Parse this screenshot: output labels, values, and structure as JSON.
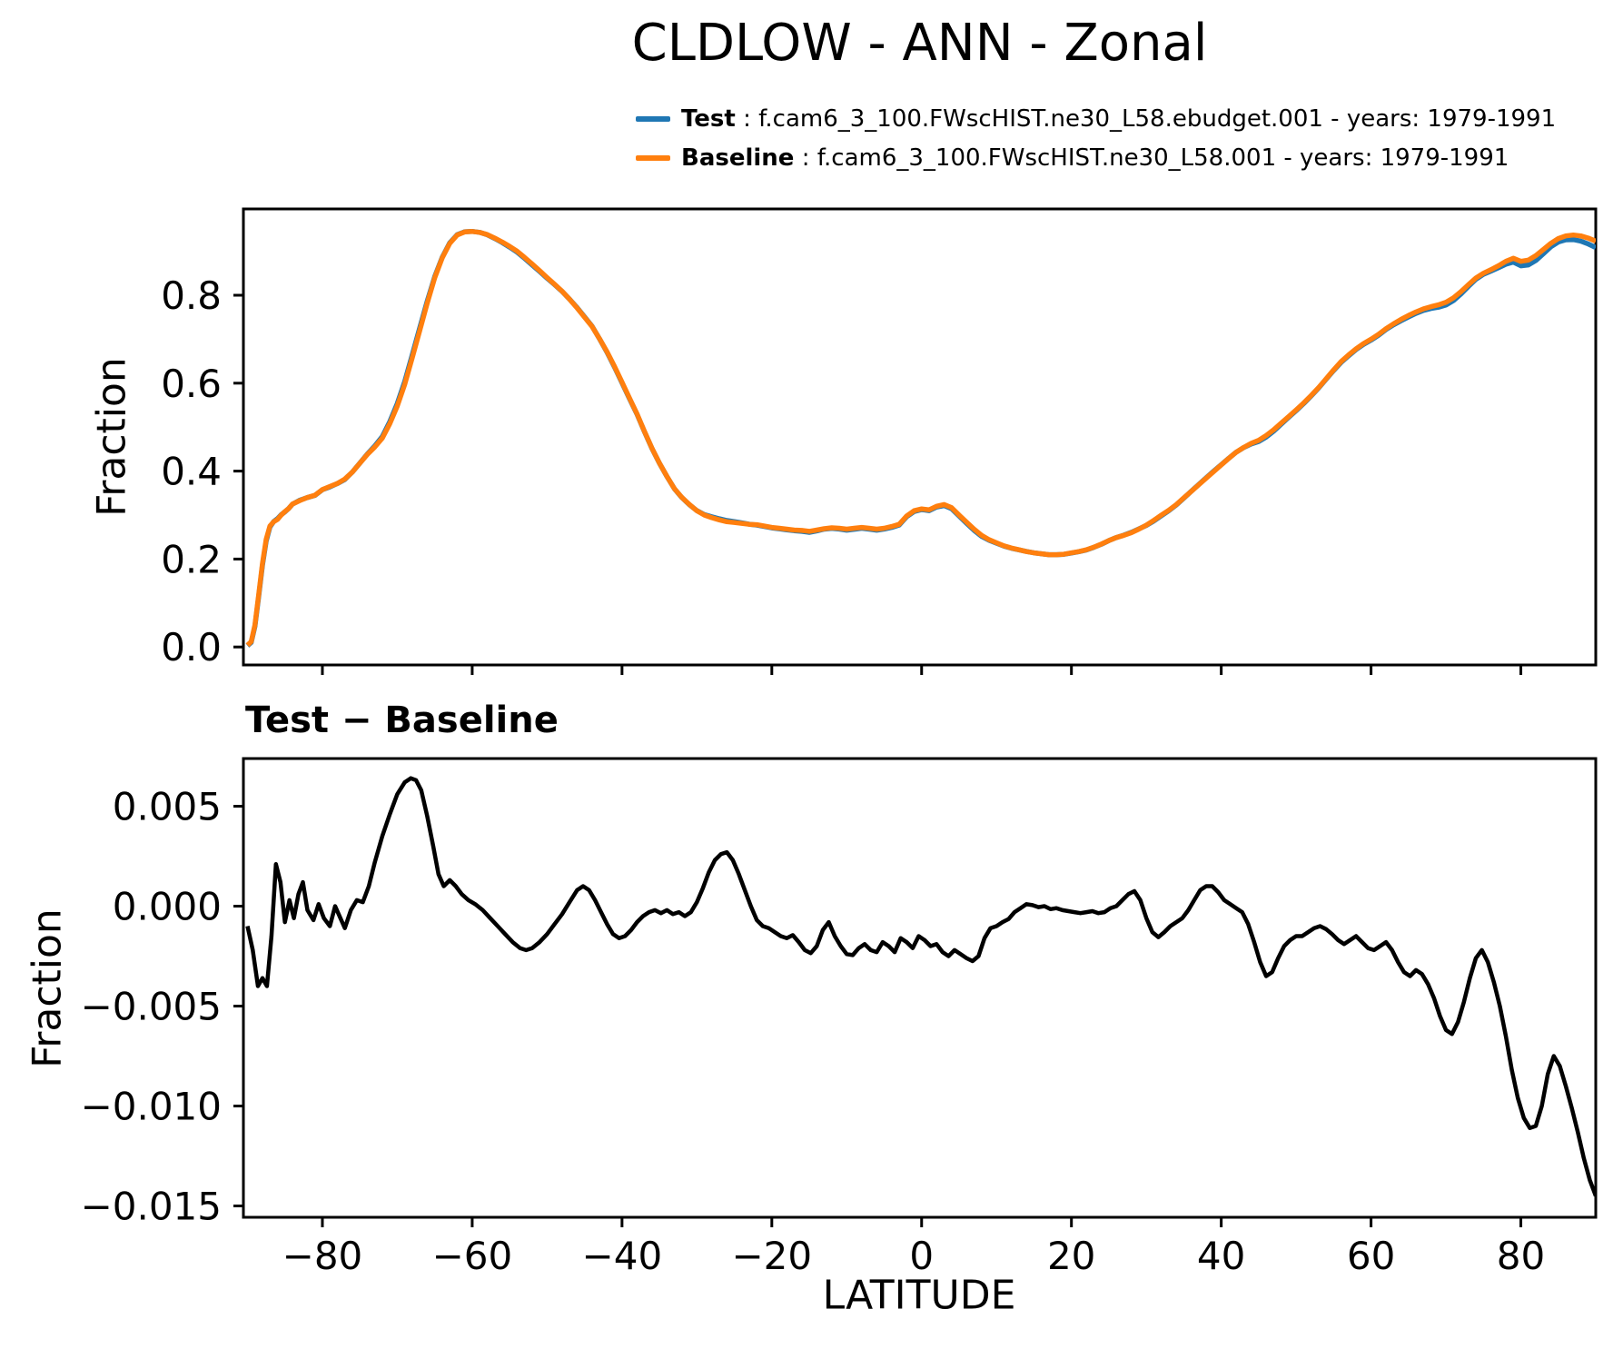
{
  "title": "CLDLOW - ANN - Zonal",
  "legend": [
    {
      "label": "Test",
      "rest": " : f.cam6_3_100.FWscHIST.ne30_L58.ebudget.001 - years: 1979-1991",
      "color": "#1f77b4"
    },
    {
      "label": "Baseline",
      "rest": " : f.cam6_3_100.FWscHIST.ne30_L58.001 - years: 1979-1991",
      "color": "#ff7f0e"
    }
  ],
  "chart_data": [
    {
      "type": "line",
      "panel": "top",
      "title": "",
      "xlabel": "",
      "ylabel": "Fraction",
      "xlim": [
        -90,
        90
      ],
      "ylim": [
        -0.041,
        0.996
      ],
      "grid": false,
      "legend_position": "above-axes",
      "xticks": [
        -80,
        -60,
        -40,
        -20,
        0,
        20,
        40,
        60,
        80
      ],
      "xtick_labels_visible": false,
      "yticks": [
        0.0,
        0.2,
        0.4,
        0.6,
        0.8
      ],
      "ytick_labels": [
        "0.0",
        "0.2",
        "0.4",
        "0.6",
        "0.8"
      ],
      "x": [
        -90,
        -89.5,
        -89,
        -88.5,
        -88,
        -87.5,
        -87,
        -86.5,
        -86,
        -85.5,
        -85,
        -84.5,
        -84,
        -83,
        -82,
        -81,
        -80,
        -79,
        -78,
        -77,
        -76,
        -75,
        -74,
        -73,
        -72,
        -71,
        -70,
        -69,
        -68,
        -67,
        -66,
        -65,
        -64,
        -63,
        -62,
        -61,
        -60,
        -59,
        -58,
        -57,
        -56,
        -55,
        -54,
        -53,
        -52,
        -51,
        -50,
        -49,
        -48,
        -47,
        -46,
        -45,
        -44,
        -43,
        -42,
        -41,
        -40,
        -39,
        -38,
        -37,
        -36,
        -35,
        -34,
        -33,
        -32,
        -31,
        -30,
        -29,
        -28,
        -27,
        -26,
        -25,
        -24,
        -23,
        -22,
        -21,
        -20,
        -19,
        -18,
        -17,
        -16,
        -15,
        -14,
        -13,
        -12,
        -11,
        -10,
        -9,
        -8,
        -7,
        -6,
        -5,
        -4,
        -3,
        -2,
        -1,
        0,
        1,
        2,
        3,
        4,
        5,
        6,
        7,
        8,
        9,
        10,
        11,
        12,
        13,
        14,
        15,
        16,
        17,
        18,
        19,
        20,
        21,
        22,
        23,
        24,
        25,
        26,
        27,
        28,
        29,
        30,
        31,
        32,
        33,
        34,
        35,
        36,
        37,
        38,
        39,
        40,
        41,
        42,
        43,
        44,
        45,
        46,
        47,
        48,
        49,
        50,
        51,
        52,
        53,
        54,
        55,
        56,
        57,
        58,
        59,
        60,
        61,
        62,
        63,
        64,
        65,
        66,
        67,
        68,
        69,
        70,
        71,
        72,
        73,
        74,
        75,
        76,
        77,
        78,
        79,
        80,
        81,
        82,
        83,
        84,
        85,
        86,
        87,
        88,
        89,
        90
      ],
      "series": [
        {
          "name": "Test",
          "color": "#1f77b4",
          "derived": "baseline_plus_diff"
        },
        {
          "name": "Baseline",
          "color": "#ff7f0e",
          "y": [
            0.004,
            0.012,
            0.05,
            0.12,
            0.19,
            0.245,
            0.275,
            0.285,
            0.29,
            0.3,
            0.308,
            0.315,
            0.325,
            0.333,
            0.34,
            0.345,
            0.358,
            0.365,
            0.372,
            0.382,
            0.398,
            0.418,
            0.438,
            0.455,
            0.475,
            0.508,
            0.548,
            0.598,
            0.658,
            0.72,
            0.782,
            0.84,
            0.885,
            0.918,
            0.937,
            0.944,
            0.945,
            0.943,
            0.938,
            0.93,
            0.921,
            0.911,
            0.9,
            0.886,
            0.871,
            0.856,
            0.84,
            0.825,
            0.809,
            0.791,
            0.771,
            0.75,
            0.729,
            0.701,
            0.671,
            0.638,
            0.602,
            0.566,
            0.53,
            0.49,
            0.452,
            0.418,
            0.388,
            0.36,
            0.34,
            0.324,
            0.31,
            0.3,
            0.294,
            0.289,
            0.285,
            0.283,
            0.281,
            0.279,
            0.278,
            0.275,
            0.272,
            0.27,
            0.268,
            0.266,
            0.265,
            0.263,
            0.266,
            0.269,
            0.271,
            0.27,
            0.268,
            0.27,
            0.272,
            0.27,
            0.268,
            0.27,
            0.274,
            0.279,
            0.298,
            0.31,
            0.314,
            0.312,
            0.32,
            0.324,
            0.317,
            0.3,
            0.284,
            0.268,
            0.254,
            0.244,
            0.237,
            0.23,
            0.225,
            0.221,
            0.217,
            0.214,
            0.212,
            0.21,
            0.21,
            0.211,
            0.214,
            0.217,
            0.221,
            0.227,
            0.234,
            0.242,
            0.249,
            0.254,
            0.26,
            0.268,
            0.277,
            0.288,
            0.3,
            0.311,
            0.324,
            0.339,
            0.354,
            0.369,
            0.384,
            0.399,
            0.414,
            0.429,
            0.443,
            0.454,
            0.463,
            0.47,
            0.481,
            0.494,
            0.509,
            0.524,
            0.539,
            0.555,
            0.572,
            0.59,
            0.61,
            0.63,
            0.649,
            0.664,
            0.678,
            0.69,
            0.7,
            0.711,
            0.724,
            0.735,
            0.745,
            0.754,
            0.762,
            0.769,
            0.774,
            0.778,
            0.784,
            0.794,
            0.808,
            0.824,
            0.839,
            0.85,
            0.858,
            0.867,
            0.877,
            0.884,
            0.877,
            0.88,
            0.89,
            0.904,
            0.918,
            0.929,
            0.935,
            0.937,
            0.935,
            0.93,
            0.923
          ]
        }
      ]
    },
    {
      "type": "line",
      "panel": "bottom",
      "title": "Test − Baseline",
      "xlabel": "LATITUDE",
      "ylabel": "Fraction",
      "xlim": [
        -90,
        90
      ],
      "ylim": [
        -0.0156,
        0.0074
      ],
      "grid": false,
      "xticks": [
        -80,
        -60,
        -40,
        -20,
        0,
        20,
        40,
        60,
        80
      ],
      "xtick_labels": [
        "−80",
        "−60",
        "−40",
        "−20",
        "0",
        "20",
        "40",
        "60",
        "80"
      ],
      "yticks": [
        0.005,
        0.0,
        -0.005,
        -0.01,
        -0.015
      ],
      "ytick_labels": [
        "0.005",
        "0.000",
        "−0.005",
        "−0.010",
        "−0.015"
      ],
      "x": [
        -90,
        -89.3,
        -88.6,
        -88,
        -87.4,
        -86.8,
        -86.2,
        -85.6,
        -85,
        -84.4,
        -83.8,
        -83.2,
        -82.6,
        -82,
        -81.2,
        -80.5,
        -79.8,
        -79,
        -78.3,
        -77.6,
        -77,
        -76.2,
        -75.4,
        -74.6,
        -73.8,
        -73,
        -72,
        -71,
        -70,
        -69,
        -68.2,
        -67.5,
        -66.8,
        -66,
        -65.2,
        -64.5,
        -63.8,
        -63,
        -62.2,
        -61.4,
        -60.5,
        -59.6,
        -58.6,
        -57.6,
        -56.6,
        -55.6,
        -54.6,
        -53.6,
        -52.8,
        -52,
        -51,
        -50,
        -49,
        -48,
        -47,
        -46,
        -45.2,
        -44.4,
        -43.6,
        -42.8,
        -42,
        -41.2,
        -40.4,
        -39.6,
        -38.8,
        -38,
        -37.2,
        -36.4,
        -35.6,
        -34.8,
        -34,
        -33.2,
        -32.4,
        -31.6,
        -30.8,
        -30,
        -29.2,
        -28.4,
        -27.6,
        -26.8,
        -26,
        -25.2,
        -24.4,
        -23.6,
        -22.8,
        -22,
        -21.2,
        -20.4,
        -19.6,
        -18.8,
        -18,
        -17.2,
        -16.4,
        -15.6,
        -14.8,
        -14,
        -13.2,
        -12.4,
        -11.6,
        -10.8,
        -10,
        -9.2,
        -8.4,
        -7.6,
        -6.8,
        -6,
        -5.2,
        -4.4,
        -3.6,
        -2.8,
        -2,
        -1.2,
        -0.4,
        0.4,
        1.2,
        2,
        2.8,
        3.6,
        4.4,
        5.2,
        6,
        6.8,
        7.6,
        8.4,
        9.2,
        10,
        10.8,
        11.6,
        12.4,
        13.2,
        14,
        14.8,
        15.6,
        16.4,
        17.2,
        18,
        18.8,
        19.6,
        20.4,
        21.2,
        22,
        22.8,
        23.6,
        24.4,
        25.2,
        26,
        26.8,
        27.6,
        28.4,
        29.2,
        30,
        30.8,
        31.6,
        32.4,
        33.2,
        34,
        34.8,
        35.6,
        36.4,
        37.2,
        38,
        38.8,
        39.6,
        40.4,
        41.2,
        42,
        42.8,
        43.6,
        44.4,
        45.2,
        46,
        46.8,
        47.6,
        48.4,
        49.2,
        50,
        50.8,
        51.6,
        52.4,
        53.2,
        54,
        54.8,
        55.6,
        56.4,
        57.2,
        58,
        58.8,
        59.6,
        60.4,
        61.2,
        62,
        62.8,
        63.6,
        64.4,
        65.2,
        66,
        66.8,
        67.6,
        68.4,
        69.2,
        70,
        70.8,
        71.6,
        72.4,
        73.2,
        74,
        74.8,
        75.6,
        76.4,
        77.2,
        78,
        78.8,
        79.6,
        80.4,
        81.2,
        82,
        82.8,
        83.6,
        84.4,
        85.2,
        86,
        86.8,
        87.6,
        88.4,
        89.2,
        90
      ],
      "series": [
        {
          "name": "Test − Baseline",
          "color": "#000000",
          "y": [
            -0.001,
            -0.0022,
            -0.004,
            -0.0036,
            -0.004,
            -0.0015,
            0.0021,
            0.0012,
            -0.0008,
            0.0003,
            -0.0006,
            0.0006,
            0.0012,
            -0.0002,
            -0.0007,
            0.0001,
            -0.0006,
            -0.001,
            0.0,
            -0.0006,
            -0.0011,
            -0.0002,
            0.0003,
            0.0002,
            0.001,
            0.0022,
            0.0035,
            0.0046,
            0.0056,
            0.0062,
            0.0064,
            0.0063,
            0.0058,
            0.0045,
            0.003,
            0.0016,
            0.001,
            0.0013,
            0.001,
            0.0006,
            0.0003,
            0.0001,
            -0.0002,
            -0.0006,
            -0.001,
            -0.0014,
            -0.0018,
            -0.0021,
            -0.0022,
            -0.0021,
            -0.0018,
            -0.0014,
            -0.0009,
            -0.0004,
            0.0002,
            0.0008,
            0.001,
            0.0008,
            0.0003,
            -0.0003,
            -0.0009,
            -0.0014,
            -0.0016,
            -0.0015,
            -0.0012,
            -0.0008,
            -0.0005,
            -0.0003,
            -0.0002,
            -0.00035,
            -0.0002,
            -0.0004,
            -0.0003,
            -0.0005,
            -0.0003,
            0.0002,
            0.0009,
            0.0017,
            0.0023,
            0.0026,
            0.0027,
            0.0023,
            0.0016,
            0.0008,
            0.0,
            -0.0007,
            -0.001,
            -0.0011,
            -0.0013,
            -0.0015,
            -0.0016,
            -0.00145,
            -0.0018,
            -0.0022,
            -0.00235,
            -0.002,
            -0.0012,
            -0.0008,
            -0.0015,
            -0.002,
            -0.0024,
            -0.00245,
            -0.0021,
            -0.0019,
            -0.0022,
            -0.0023,
            -0.0018,
            -0.002,
            -0.0023,
            -0.0016,
            -0.0018,
            -0.0021,
            -0.0015,
            -0.0017,
            -0.002,
            -0.0019,
            -0.0023,
            -0.0025,
            -0.0022,
            -0.0024,
            -0.0026,
            -0.00275,
            -0.0025,
            -0.0016,
            -0.0011,
            -0.001,
            -0.0008,
            -0.00065,
            -0.0003,
            -0.0001,
            0.0001,
            5e-05,
            -5e-05,
            0.0,
            -0.00015,
            -0.0001,
            -0.0002,
            -0.00025,
            -0.0003,
            -0.00035,
            -0.0003,
            -0.00025,
            -0.00035,
            -0.0003,
            -0.0001,
            0.0,
            0.0003,
            0.0006,
            0.00075,
            0.0003,
            -0.0006,
            -0.0013,
            -0.00155,
            -0.0013,
            -0.001,
            -0.0008,
            -0.0006,
            -0.0002,
            0.0003,
            0.0008,
            0.001,
            0.001,
            0.0007,
            0.0003,
            0.0001,
            -0.0001,
            -0.0003,
            -0.0009,
            -0.0018,
            -0.0028,
            -0.0035,
            -0.0033,
            -0.0026,
            -0.002,
            -0.0017,
            -0.0015,
            -0.0015,
            -0.0013,
            -0.0011,
            -0.001,
            -0.00115,
            -0.0014,
            -0.0017,
            -0.0019,
            -0.0017,
            -0.0015,
            -0.0018,
            -0.0021,
            -0.0022,
            -0.002,
            -0.0018,
            -0.0022,
            -0.0028,
            -0.0033,
            -0.0035,
            -0.0032,
            -0.0034,
            -0.0039,
            -0.0046,
            -0.0055,
            -0.0062,
            -0.0064,
            -0.0058,
            -0.0048,
            -0.0036,
            -0.0026,
            -0.0022,
            -0.0028,
            -0.0038,
            -0.005,
            -0.0065,
            -0.0082,
            -0.0096,
            -0.0106,
            -0.0111,
            -0.011,
            -0.01,
            -0.0084,
            -0.0075,
            -0.008,
            -0.009,
            -0.0101,
            -0.0113,
            -0.0126,
            -0.0137,
            -0.0145
          ]
        }
      ]
    }
  ]
}
